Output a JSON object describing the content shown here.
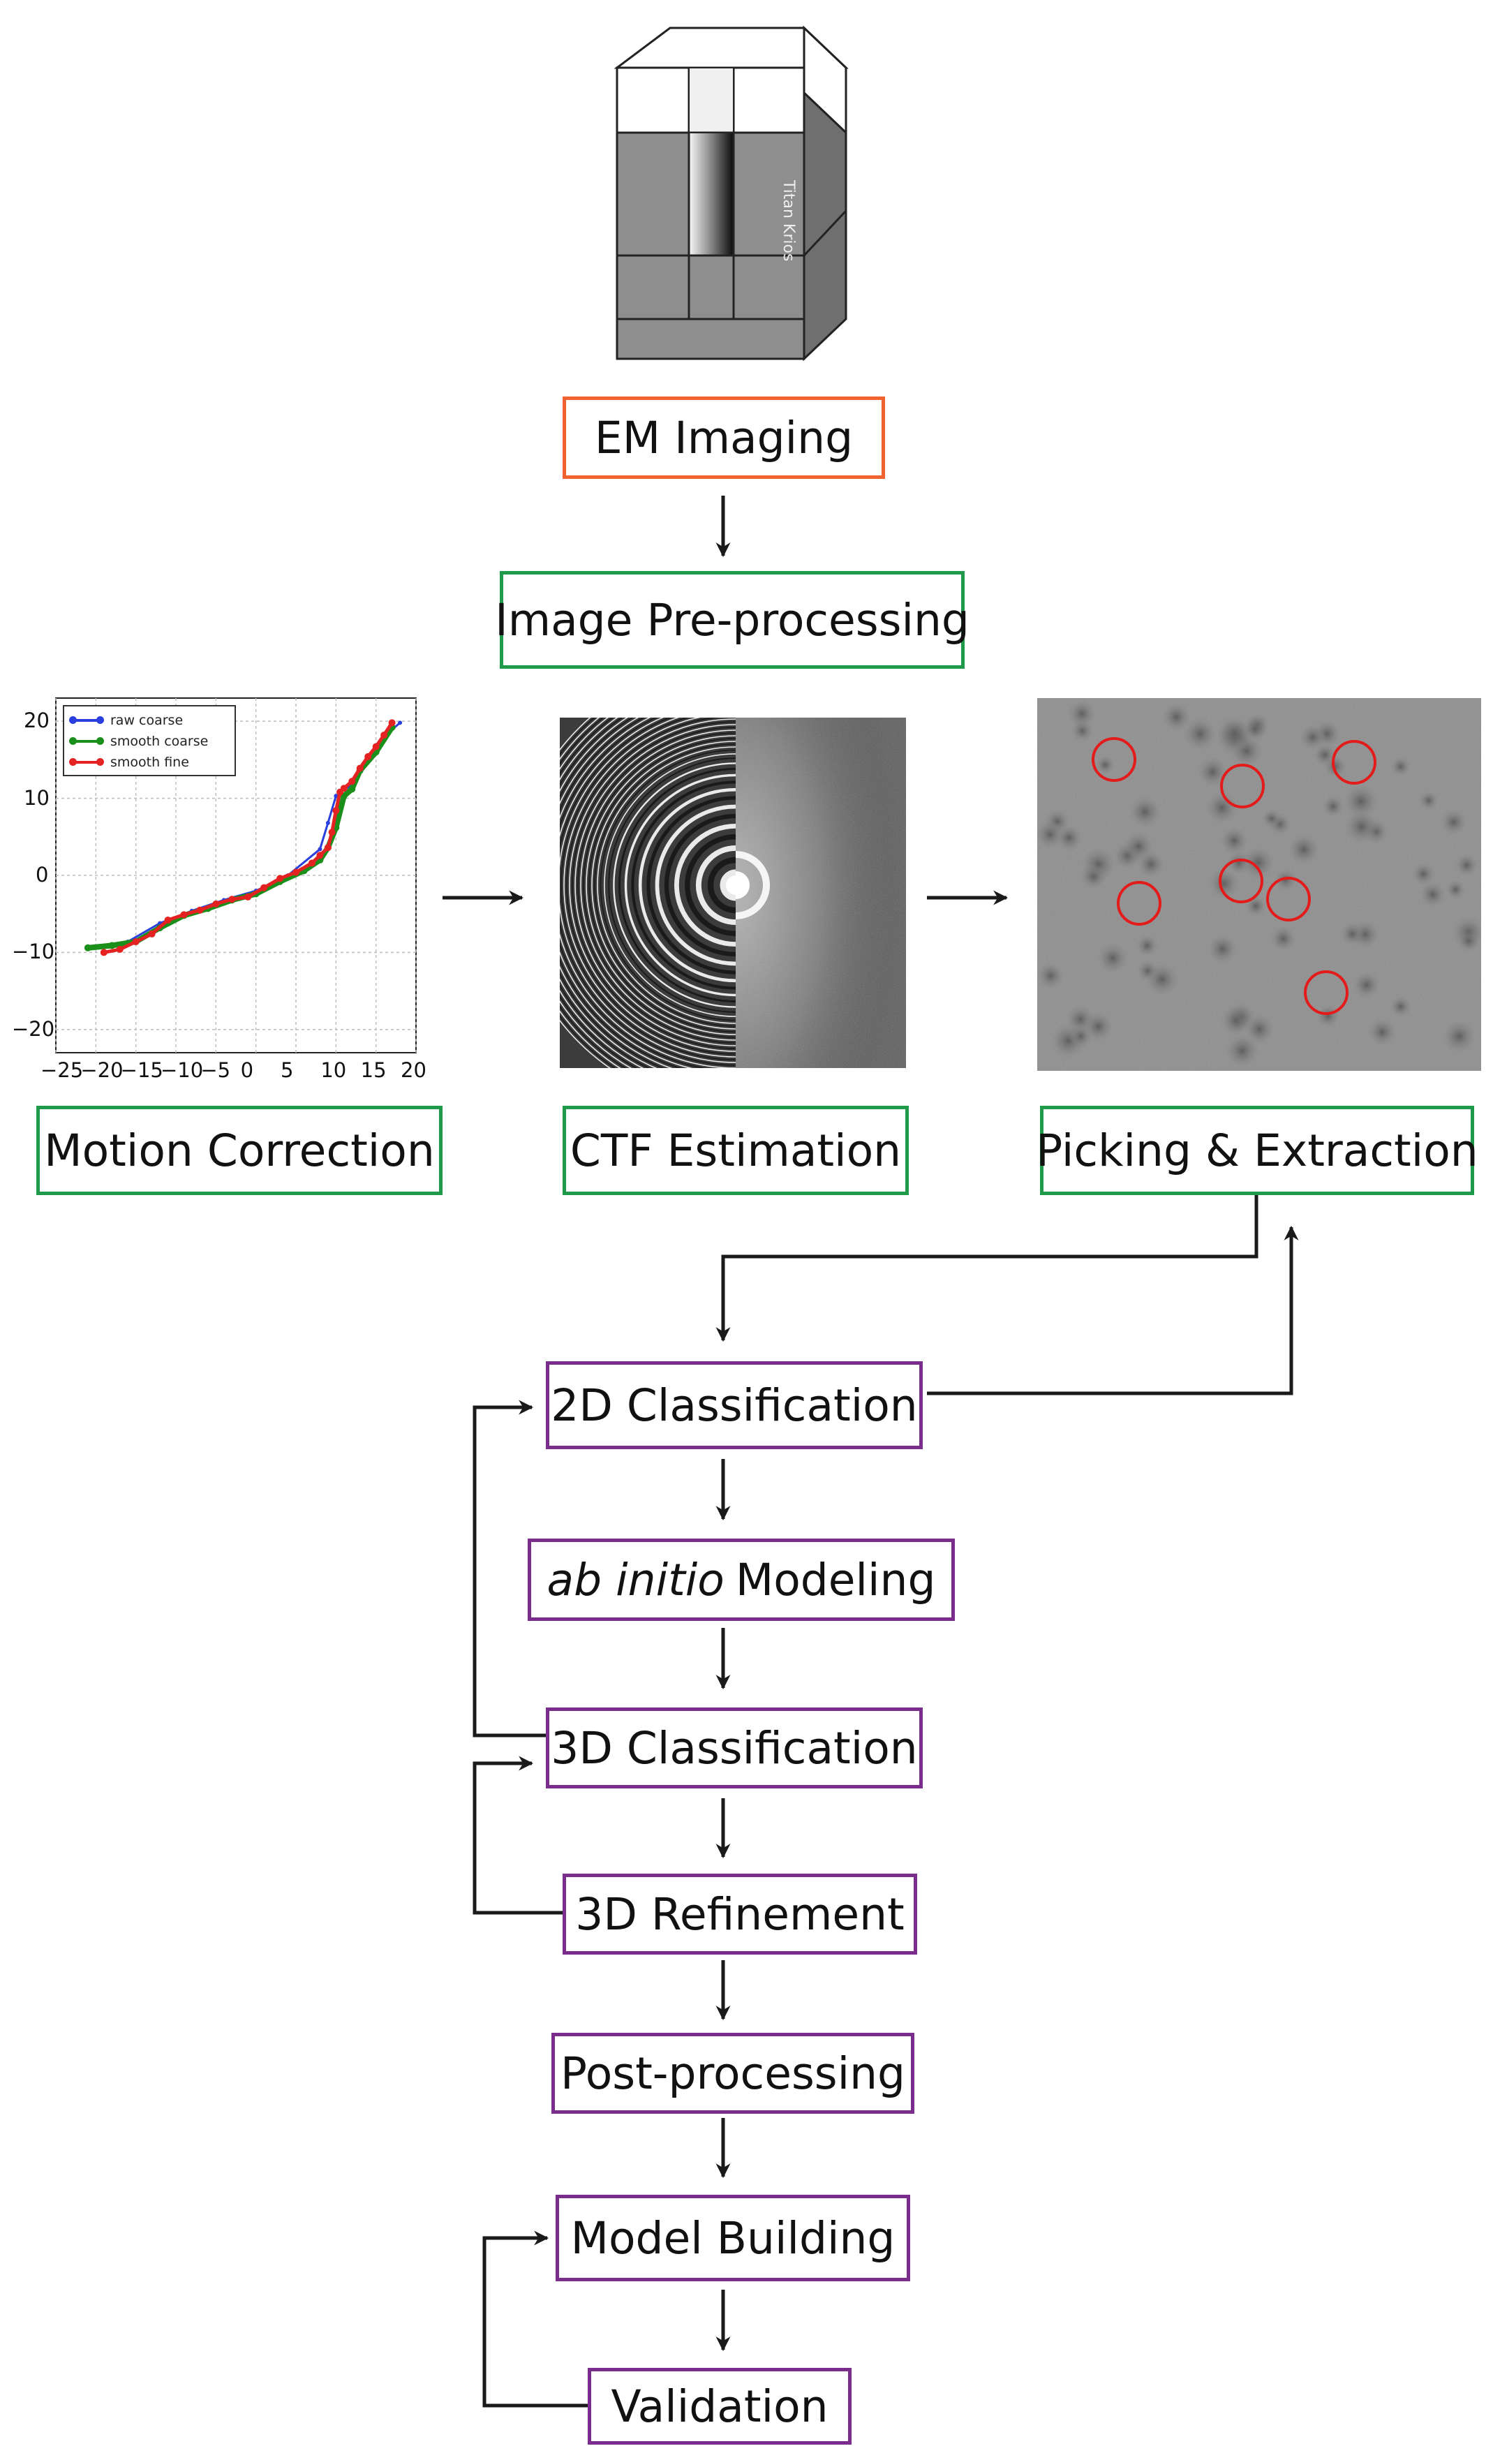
{
  "microscope": {
    "label": "Titan Krios"
  },
  "steps": {
    "em_imaging": "EM Imaging",
    "preprocessing": "Image Pre-processing",
    "motion_correction": "Motion Correction",
    "ctf_estimation": "CTF Estimation",
    "picking_extraction": "Picking & Extraction",
    "classification_2d": "2D Classification",
    "ab_initio_italic": "ab initio",
    "ab_initio_rest": "Modeling",
    "classification_3d": "3D Classification",
    "refinement_3d": "3D Refinement",
    "postprocessing": "Post-processing",
    "model_building": "Model Building",
    "validation": "Validation"
  },
  "colors": {
    "orange": "#f0622f",
    "green": "#1f9a4b",
    "purple": "#7b2d8e",
    "arrow": "#1a1a1a",
    "series_raw": "#2a3fdd",
    "series_smooth_coarse": "#1a8f1a",
    "series_smooth_fine": "#e52222"
  },
  "chart_data": {
    "type": "line",
    "xlim": [
      -25,
      20
    ],
    "ylim": [
      -23,
      23
    ],
    "xticks": [
      "−25",
      "−20",
      "−15",
      "−10",
      "−5",
      "0",
      "5",
      "10",
      "15",
      "20"
    ],
    "yticks": [
      "20",
      "10",
      "0",
      "−10",
      "−20"
    ],
    "grid": true,
    "legend_position": "top-left",
    "series": [
      {
        "name": "raw coarse",
        "x": [
          -20,
          -16,
          -12,
          -8,
          -4,
          0,
          4,
          8,
          9,
          10,
          12,
          14,
          16,
          18
        ],
        "y": [
          -9.2,
          -8.6,
          -6.2,
          -4.6,
          -3.2,
          -2,
          0,
          3.4,
          6.8,
          10.3,
          11.8,
          15,
          18,
          19.8
        ]
      },
      {
        "name": "smooth coarse",
        "x": [
          -21,
          -18,
          -15,
          -12,
          -9,
          -6,
          -3,
          0,
          3,
          6,
          8,
          9,
          10,
          11,
          12,
          13,
          15,
          17
        ],
        "y": [
          -9.4,
          -9.1,
          -8.6,
          -6.8,
          -5.2,
          -4.3,
          -3.2,
          -2.4,
          -0.8,
          0.6,
          2,
          3.6,
          6.2,
          10.3,
          11.2,
          13.6,
          16,
          19.2
        ]
      },
      {
        "name": "smooth fine",
        "x": [
          -19,
          -17,
          -15,
          -13,
          -11,
          -9,
          -7,
          -5,
          -3,
          -1,
          1,
          3,
          5,
          7,
          8,
          9,
          9.5,
          10,
          10.5,
          11,
          12,
          13,
          14,
          15,
          16,
          17
        ],
        "y": [
          -10,
          -9.6,
          -8.6,
          -7.6,
          -5.8,
          -5.1,
          -4.5,
          -3.7,
          -3.1,
          -2.8,
          -1.6,
          -0.4,
          0.4,
          1.6,
          2.6,
          3.6,
          5.6,
          8.4,
          10.8,
          11.3,
          12.2,
          13.9,
          15.4,
          16.7,
          18.2,
          19.8
        ]
      }
    ]
  }
}
